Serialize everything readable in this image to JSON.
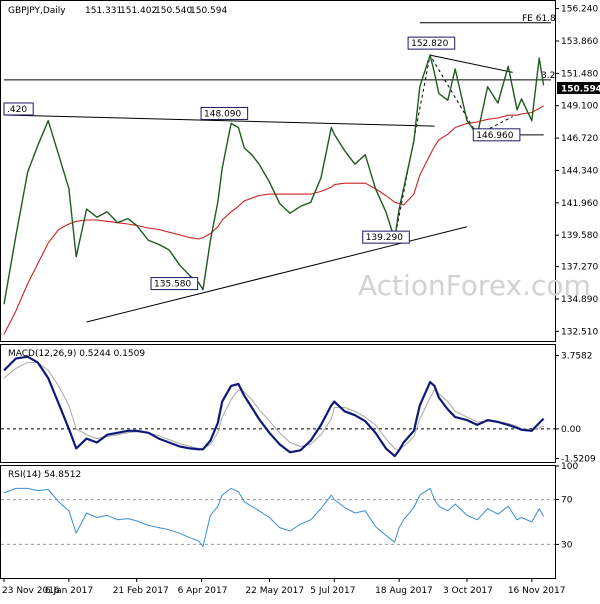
{
  "colors": {
    "price": "#1f5a1f",
    "sma": "#cc2222",
    "macd": "#101878",
    "signal": "#a8a8a8",
    "rsi": "#3a8fd6",
    "annotation_border": "#1a1a66",
    "watermark": "#d2d2d2",
    "current_bg": "#000000"
  },
  "watermark": "ActionForex.com",
  "chart_data": [
    {
      "type": "line",
      "title": "GBPJPY,Daily",
      "ohlc": {
        "open": "151.331",
        "high": "151.402",
        "low": "150.540",
        "close": "150.594"
      },
      "ylim": [
        131.8,
        156.8
      ],
      "y_ticks": [
        "156.240",
        "153.860",
        "151.480",
        "149.100",
        "146.720",
        "144.340",
        "141.960",
        "139.580",
        "137.270",
        "134.890",
        "132.510"
      ],
      "current_label": "150.594",
      "x": [
        "2016-11-23",
        "2016-12-01",
        "2016-12-09",
        "2016-12-16",
        "2016-12-23",
        "2016-12-30",
        "2017-01-06",
        "2017-01-11",
        "2017-01-18",
        "2017-01-25",
        "2017-02-01",
        "2017-02-08",
        "2017-02-15",
        "2017-02-21",
        "2017-03-01",
        "2017-03-08",
        "2017-03-15",
        "2017-03-22",
        "2017-03-29",
        "2017-04-04",
        "2017-04-07",
        "2017-04-12",
        "2017-04-17",
        "2017-04-20",
        "2017-04-26",
        "2017-05-01",
        "2017-05-05",
        "2017-05-10",
        "2017-05-15",
        "2017-05-22",
        "2017-05-29",
        "2017-06-05",
        "2017-06-12",
        "2017-06-19",
        "2017-06-26",
        "2017-07-03",
        "2017-07-05",
        "2017-07-12",
        "2017-07-19",
        "2017-07-26",
        "2017-08-02",
        "2017-08-09",
        "2017-08-15",
        "2017-08-18",
        "2017-08-21",
        "2017-08-28",
        "2017-09-01",
        "2017-09-08",
        "2017-09-11",
        "2017-09-14",
        "2017-09-20",
        "2017-09-25",
        "2017-10-03",
        "2017-10-10",
        "2017-10-17",
        "2017-10-24",
        "2017-10-31",
        "2017-11-06",
        "2017-11-09",
        "2017-11-16",
        "2017-11-21",
        "2017-11-24"
      ],
      "series": [
        {
          "values": [
            134.5,
            139.5,
            144.2,
            146.2,
            148.0,
            145.5,
            143.0,
            138.0,
            141.5,
            140.9,
            141.3,
            140.5,
            140.8,
            140.3,
            139.2,
            138.9,
            138.5,
            137.4,
            136.6,
            136.1,
            135.58,
            139.2,
            142.0,
            144.5,
            147.8,
            147.5,
            146.0,
            145.5,
            144.8,
            143.5,
            141.9,
            141.2,
            141.7,
            142.0,
            143.8,
            147.5,
            147.0,
            145.8,
            144.8,
            145.5,
            143.0,
            141.3,
            139.29,
            141.5,
            143.0,
            146.5,
            150.5,
            152.82,
            151.5,
            150.0,
            149.5,
            151.8,
            148.0,
            146.96,
            150.5,
            149.3,
            152.0,
            148.8,
            149.6,
            148.0,
            152.6,
            150.594
          ]
        },
        {
          "name": "SMA",
          "values": [
            132.3,
            134.0,
            136.0,
            137.5,
            139.0,
            140.0,
            140.4,
            140.6,
            140.7,
            140.7,
            140.6,
            140.5,
            140.4,
            140.3,
            140.1,
            140.0,
            139.8,
            139.6,
            139.4,
            139.3,
            139.4,
            139.7,
            140.2,
            140.7,
            141.3,
            141.7,
            142.1,
            142.3,
            142.5,
            142.6,
            142.6,
            142.6,
            142.6,
            142.6,
            142.8,
            143.1,
            143.3,
            143.4,
            143.4,
            143.4,
            143.0,
            142.5,
            142.0,
            141.9,
            141.8,
            142.6,
            144.0,
            145.5,
            146.1,
            146.6,
            147.0,
            147.5,
            147.8,
            147.9,
            148.1,
            148.2,
            148.4,
            148.4,
            148.5,
            148.6,
            148.9,
            149.1
          ]
        }
      ],
      "annotations": [
        {
          "label": "152.820",
          "x": "2017-09-08",
          "y": 152.82
        },
        {
          "label": "148.090",
          "x": "2017-04-26",
          "y": 148.09
        },
        {
          "label": "146.960",
          "x": "2017-10-10",
          "y": 146.96
        },
        {
          "label": "139.290",
          "x": "2017-08-15",
          "y": 139.29
        },
        {
          "label": "135.580",
          "x": "2017-04-07",
          "y": 135.58
        },
        {
          "label": ".420",
          "x": "2016-11-23",
          "y": 148.42
        }
      ],
      "level_labels": [
        {
          "label": "FE 61.8",
          "y": 155.2
        },
        {
          "label": "3.2",
          "y": 151.0
        }
      ]
    },
    {
      "type": "line",
      "title": "MACD(12,26,9) 0.5244 0.1509",
      "ylim": [
        -1.7,
        4.3
      ],
      "y_ticks": [
        "3.7582",
        "0.00",
        "-1.5209"
      ],
      "series": [
        {
          "name": "MACD",
          "values": [
            3.0,
            3.6,
            3.7,
            3.4,
            2.6,
            1.3,
            0.0,
            -1.0,
            -0.5,
            -0.7,
            -0.3,
            -0.2,
            -0.1,
            -0.1,
            -0.2,
            -0.5,
            -0.7,
            -0.9,
            -1.0,
            -1.05,
            -1.05,
            -0.6,
            0.3,
            1.4,
            2.2,
            2.3,
            1.7,
            1.1,
            0.5,
            -0.2,
            -0.8,
            -1.2,
            -1.1,
            -0.6,
            0.2,
            1.2,
            1.4,
            0.9,
            0.7,
            0.4,
            -0.2,
            -1.0,
            -1.4,
            -1.1,
            -0.7,
            -0.1,
            1.2,
            2.4,
            2.2,
            1.6,
            1.0,
            0.6,
            0.45,
            0.2,
            0.45,
            0.35,
            0.2,
            0.05,
            -0.05,
            -0.1,
            0.3,
            0.52
          ]
        },
        {
          "name": "Signal",
          "values": [
            2.6,
            3.1,
            3.4,
            3.4,
            3.0,
            2.2,
            1.2,
            0.0,
            -0.3,
            -0.5,
            -0.4,
            -0.3,
            -0.2,
            -0.15,
            -0.2,
            -0.35,
            -0.55,
            -0.75,
            -0.9,
            -1.0,
            -1.0,
            -0.8,
            -0.2,
            0.6,
            1.5,
            2.0,
            1.9,
            1.5,
            1.0,
            0.4,
            -0.2,
            -0.7,
            -0.9,
            -0.8,
            -0.3,
            0.5,
            1.1,
            1.1,
            0.9,
            0.6,
            0.2,
            -0.5,
            -1.0,
            -1.1,
            -0.9,
            -0.4,
            0.5,
            1.6,
            2.0,
            1.8,
            1.4,
            0.9,
            0.6,
            0.35,
            0.4,
            0.38,
            0.28,
            0.12,
            0.0,
            -0.05,
            0.05,
            0.15
          ]
        }
      ]
    },
    {
      "type": "line",
      "title": "RSI(14) 54.8512",
      "ylim": [
        0,
        100
      ],
      "y_ticks": [
        "100",
        "70",
        "30",
        "0"
      ],
      "series": [
        {
          "name": "RSI",
          "values": [
            76,
            80,
            80,
            78,
            79,
            68,
            60,
            40,
            58,
            54,
            56,
            52,
            53,
            51,
            47,
            45,
            43,
            40,
            36,
            33,
            28,
            56,
            64,
            74,
            80,
            77,
            68,
            64,
            60,
            54,
            45,
            42,
            48,
            52,
            62,
            74,
            70,
            63,
            58,
            60,
            46,
            38,
            32,
            45,
            52,
            63,
            74,
            80,
            70,
            64,
            60,
            66,
            56,
            52,
            62,
            57,
            64,
            52,
            54,
            50,
            62,
            55
          ]
        }
      ]
    }
  ],
  "x_tick_labels": [
    {
      "label": "23 Nov 2016",
      "x": "2016-11-23"
    },
    {
      "label": "6 Jan 2017",
      "x": "2017-01-06"
    },
    {
      "label": "21 Feb 2017",
      "x": "2017-02-21"
    },
    {
      "label": "6 Apr 2017",
      "x": "2017-04-06"
    },
    {
      "label": "22 May 2017",
      "x": "2017-05-22"
    },
    {
      "label": "5 Jul 2017",
      "x": "2017-07-05"
    },
    {
      "label": "18 Aug 2017",
      "x": "2017-08-18"
    },
    {
      "label": "3 Oct 2017",
      "x": "2017-10-03"
    },
    {
      "label": "16 Nov 2017",
      "x": "2017-11-16"
    }
  ],
  "trendlines": [
    {
      "name": "triangle-upper",
      "from": {
        "x": "2016-11-23",
        "y": 148.42
      },
      "to": {
        "x": "2017-09-11",
        "y": 147.6
      }
    },
    {
      "name": "triangle-lower",
      "from": {
        "x": "2017-01-18",
        "y": 133.2
      },
      "to": {
        "x": "2017-10-03",
        "y": 140.2
      }
    },
    {
      "name": "channel-top",
      "from": {
        "x": "2017-09-08",
        "y": 152.82
      },
      "to": {
        "x": "2017-11-03",
        "y": 151.55
      }
    },
    {
      "name": "fe-level",
      "from": {
        "x": "2017-09-01",
        "y": 155.2
      },
      "to": {
        "x": "2017-11-29",
        "y": 155.2
      }
    },
    {
      "name": "level-3-2",
      "from": {
        "x": "2016-11-23",
        "y": 151.0
      },
      "to": {
        "x": "2017-11-29",
        "y": 151.0
      }
    },
    {
      "name": "level-146-96",
      "from": {
        "x": "2017-10-10",
        "y": 146.96
      },
      "to": {
        "x": "2017-11-24",
        "y": 146.96
      }
    }
  ],
  "dashed_projection": [
    {
      "x": "2017-08-15",
      "y": 139.29
    },
    {
      "x": "2017-09-08",
      "y": 152.82
    },
    {
      "x": "2017-10-10",
      "y": 146.96
    },
    {
      "x": "2017-11-03",
      "y": 148.3
    }
  ]
}
